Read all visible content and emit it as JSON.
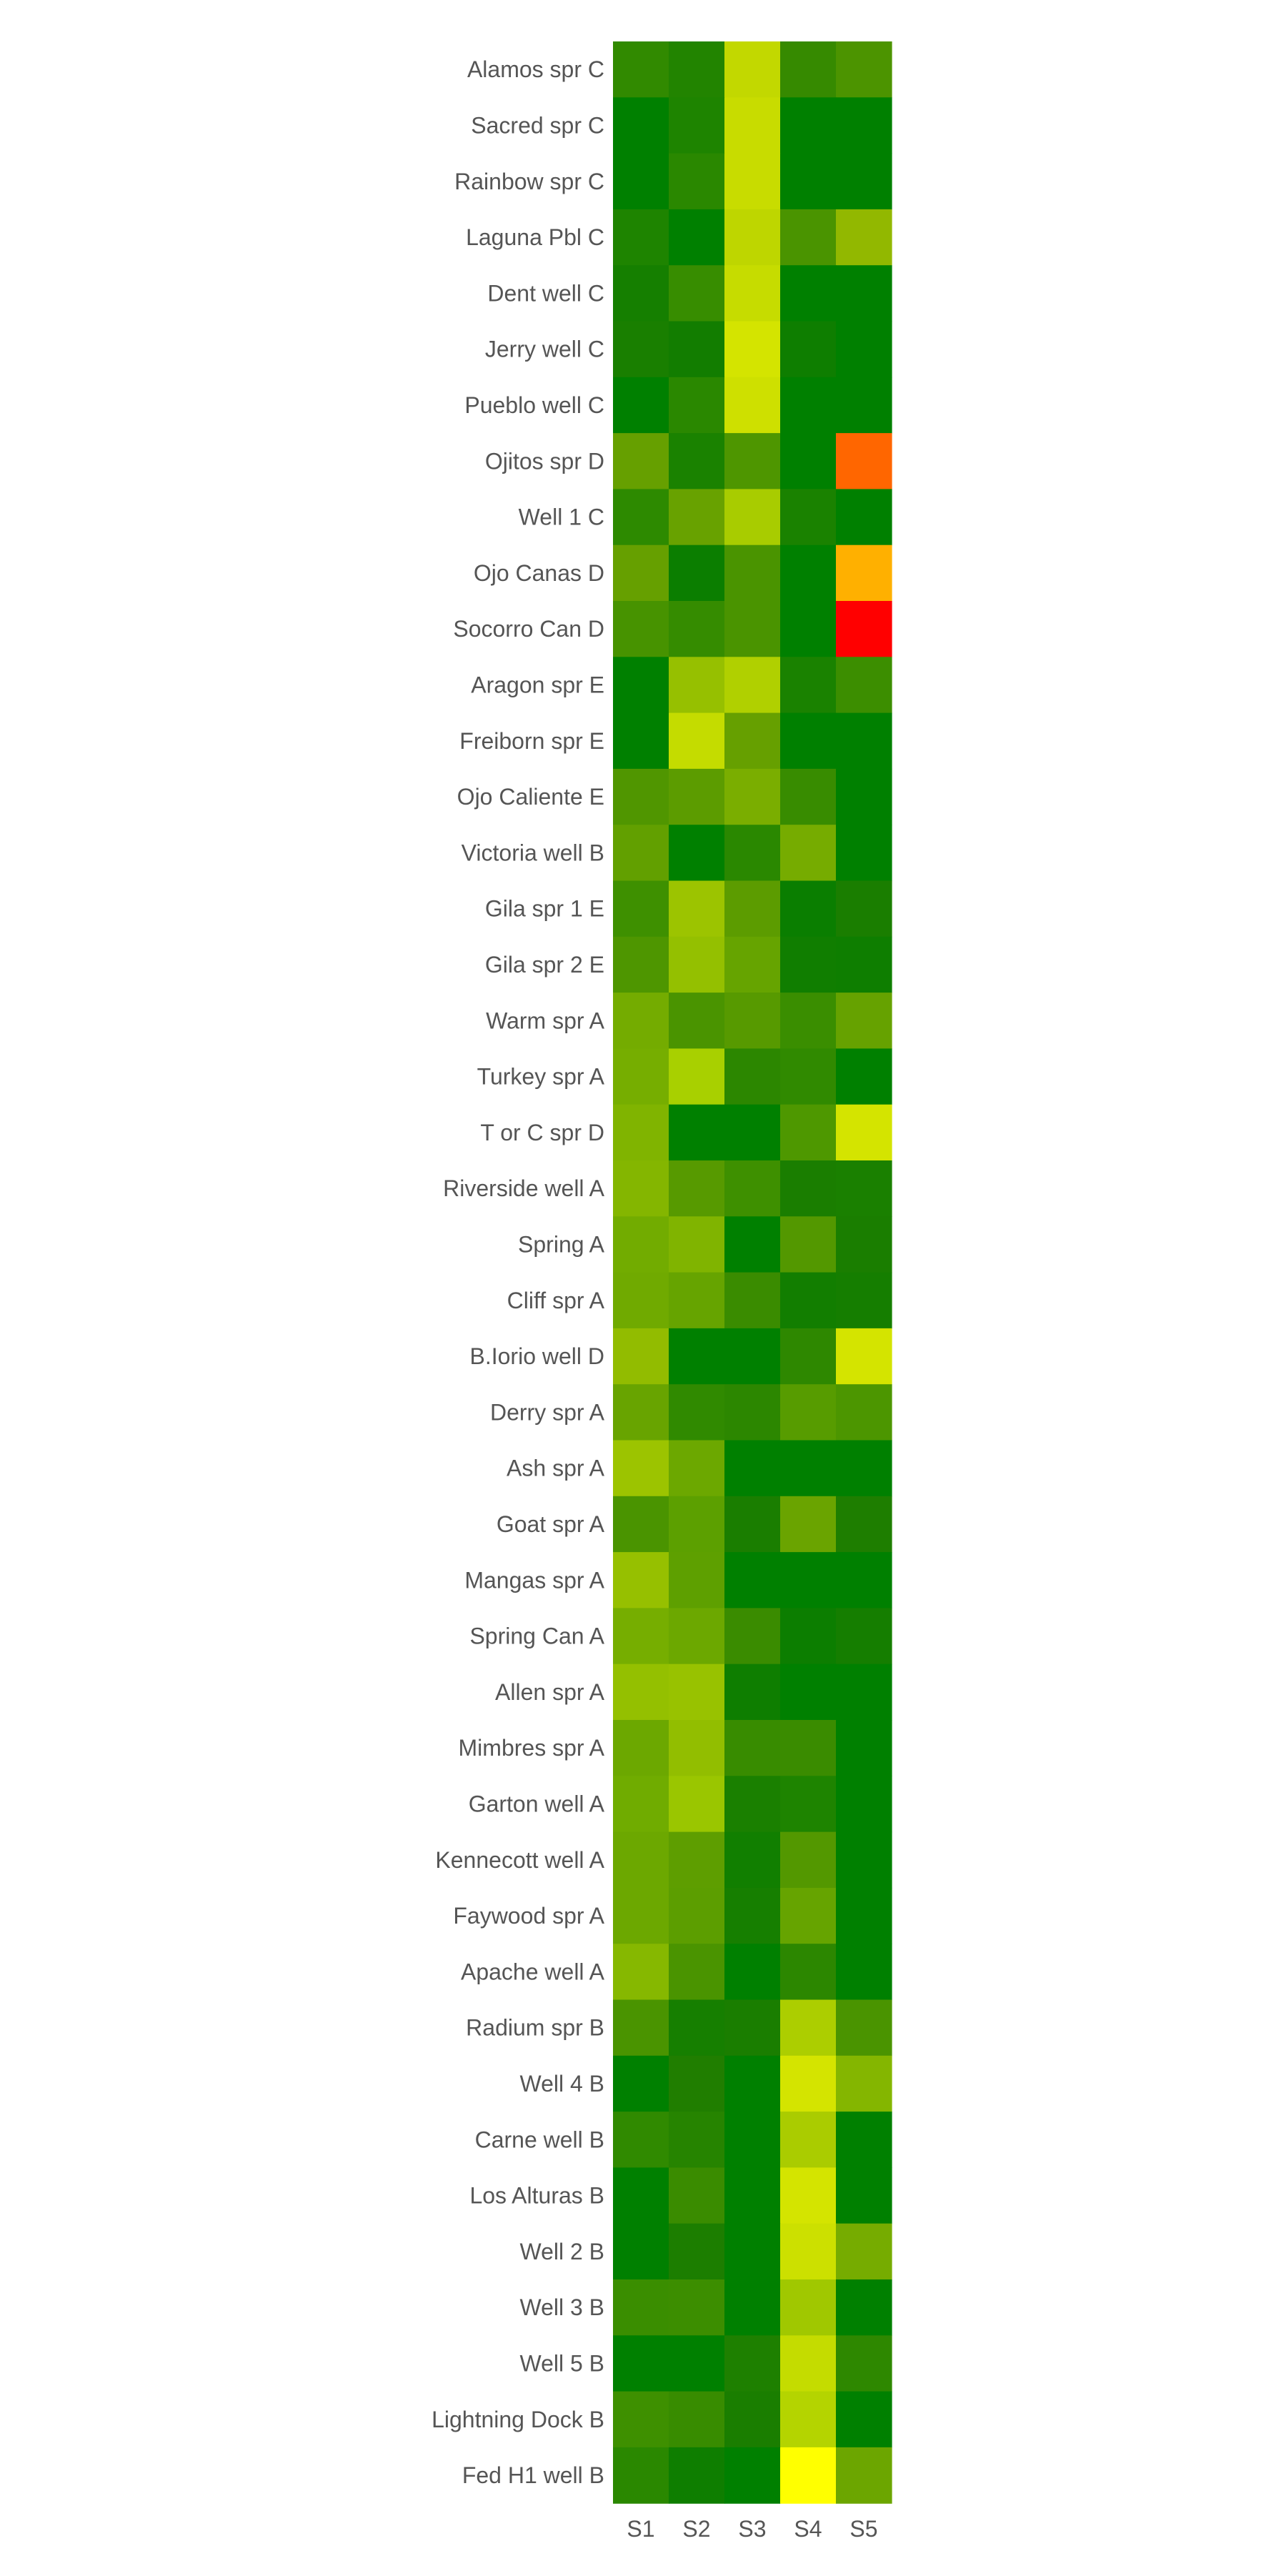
{
  "chart_data": {
    "type": "heatmap",
    "title": "",
    "xlabel": "",
    "ylabel": "",
    "columns": [
      "S1",
      "S2",
      "S3",
      "S4",
      "S5"
    ],
    "rows": [
      "Alamos spr C",
      "Sacred spr C",
      "Rainbow spr C",
      "Laguna Pbl C",
      "Dent well C",
      "Jerry well C",
      "Pueblo well C",
      "Ojitos spr D",
      "Well 1 C",
      "Ojo Canas D",
      "Socorro Can D",
      "Aragon spr E",
      "Freiborn spr E",
      "Ojo Caliente E",
      "Victoria well B",
      "Gila spr 1 E",
      "Gila spr 2 E",
      "Warm spr A",
      "Turkey spr A",
      "T or C spr D",
      "Riverside well A",
      "Spring A",
      "Cliff spr A",
      "B.Iorio well D",
      "Derry spr A",
      "Ash spr A",
      "Goat spr A",
      "Mangas spr A",
      "Spring Can A",
      "Allen spr A",
      "Mimbres spr A",
      "Garton well A",
      "Kennecott well A",
      "Faywood spr A",
      "Apache well A",
      "Radium spr B",
      "Well 4 B",
      "Carne well B",
      "Los Alturas B",
      "Well 2 B",
      "Well 3 B",
      "Well 5 B",
      "Lightning Dock B",
      "Fed H1 well B"
    ],
    "colors": [
      [
        "#318a00",
        "#228400",
        "#c2d800",
        "#368a00",
        "#4c9400"
      ],
      [
        "#008000",
        "#1e8400",
        "#c8dc00",
        "#008000",
        "#008000"
      ],
      [
        "#008000",
        "#2a8800",
        "#c8dc00",
        "#008000",
        "#008000"
      ],
      [
        "#1e8400",
        "#008000",
        "#bed600",
        "#4a9400",
        "#92b800"
      ],
      [
        "#157f00",
        "#378d00",
        "#c6dc00",
        "#008000",
        "#008000"
      ],
      [
        "#197f00",
        "#127d00",
        "#d4e400",
        "#0e7e00",
        "#008000"
      ],
      [
        "#008000",
        "#2a8800",
        "#cee000",
        "#008000",
        "#008000"
      ],
      [
        "#66a000",
        "#1a8200",
        "#4e9600",
        "#008000",
        "#ff6600"
      ],
      [
        "#2d8a00",
        "#68a200",
        "#a8cc00",
        "#1a8200",
        "#008000"
      ],
      [
        "#66a000",
        "#0b7e00",
        "#4a9400",
        "#008000",
        "#ffb000"
      ],
      [
        "#479300",
        "#358c00",
        "#4a9400",
        "#008000",
        "#ff0000"
      ],
      [
        "#008000",
        "#96c000",
        "#b0d000",
        "#1a8200",
        "#3c8e00"
      ],
      [
        "#008000",
        "#c4dc00",
        "#66a000",
        "#008000",
        "#008000"
      ],
      [
        "#509600",
        "#5c9c00",
        "#7aae00",
        "#388c00",
        "#008000"
      ],
      [
        "#62a000",
        "#008000",
        "#2a8800",
        "#76ac00",
        "#008000"
      ],
      [
        "#3e9000",
        "#9cc400",
        "#5c9c00",
        "#0a7e00",
        "#1a7e00"
      ],
      [
        "#4e9600",
        "#94c000",
        "#66a400",
        "#107e00",
        "#0e7e00"
      ],
      [
        "#74ac00",
        "#4a9400",
        "#579a00",
        "#3a8e00",
        "#66a200"
      ],
      [
        "#76ae00",
        "#a8d000",
        "#2c8700",
        "#308a00",
        "#008000"
      ],
      [
        "#80b400",
        "#008000",
        "#008000",
        "#4e9800",
        "#d4e400"
      ],
      [
        "#84b600",
        "#579a00",
        "#3e9000",
        "#1a7e00",
        "#1a8000"
      ],
      [
        "#72ac00",
        "#80b400",
        "#008000",
        "#539800",
        "#1a7e00"
      ],
      [
        "#70aa00",
        "#66a400",
        "#3a8c00",
        "#127e00",
        "#157e00"
      ],
      [
        "#92bc00",
        "#008000",
        "#008000",
        "#2e8800",
        "#d4e400"
      ],
      [
        "#68a400",
        "#308a00",
        "#2c8700",
        "#579c00",
        "#4c9600"
      ],
      [
        "#9cc400",
        "#6ca800",
        "#008000",
        "#008000",
        "#008000"
      ],
      [
        "#4a9400",
        "#5ca000",
        "#1a7e00",
        "#6aa400",
        "#1e7e00"
      ],
      [
        "#96c000",
        "#5ea000",
        "#008000",
        "#008000",
        "#008000"
      ],
      [
        "#76ae00",
        "#6ca800",
        "#3a8c00",
        "#0c7e00",
        "#157e00"
      ],
      [
        "#94c000",
        "#98c200",
        "#0e7e00",
        "#008000",
        "#008000"
      ],
      [
        "#6ca800",
        "#92be00",
        "#388c00",
        "#3a8c00",
        "#008000"
      ],
      [
        "#70ac00",
        "#9ac600",
        "#1a8000",
        "#1e8400",
        "#008000"
      ],
      [
        "#6ca800",
        "#5e9e00",
        "#117f00",
        "#539800",
        "#008000"
      ],
      [
        "#6ca800",
        "#5c9e00",
        "#167f00",
        "#66a400",
        "#008000"
      ],
      [
        "#86b800",
        "#4a9400",
        "#008000",
        "#2c8700",
        "#008000"
      ],
      [
        "#4a9400",
        "#167f00",
        "#1a7e00",
        "#acce00",
        "#4a9400"
      ],
      [
        "#008000",
        "#207e00",
        "#008000",
        "#d4e400",
        "#84b600"
      ],
      [
        "#308a00",
        "#268400",
        "#008000",
        "#aacc00",
        "#008000"
      ],
      [
        "#008000",
        "#3a8c00",
        "#008000",
        "#d4e400",
        "#008000"
      ],
      [
        "#008000",
        "#1c7e00",
        "#008000",
        "#cce000",
        "#76ac00"
      ],
      [
        "#3a8e00",
        "#3c8e00",
        "#008000",
        "#a0c800",
        "#008000"
      ],
      [
        "#008000",
        "#008000",
        "#1e8000",
        "#c4dc00",
        "#2e8800"
      ],
      [
        "#3e9000",
        "#388c00",
        "#1a7e00",
        "#b4d400",
        "#008000"
      ],
      [
        "#2a8800",
        "#0e7e00",
        "#008000",
        "#ffff00",
        "#6ca600"
      ]
    ],
    "label_color": "#555555"
  }
}
